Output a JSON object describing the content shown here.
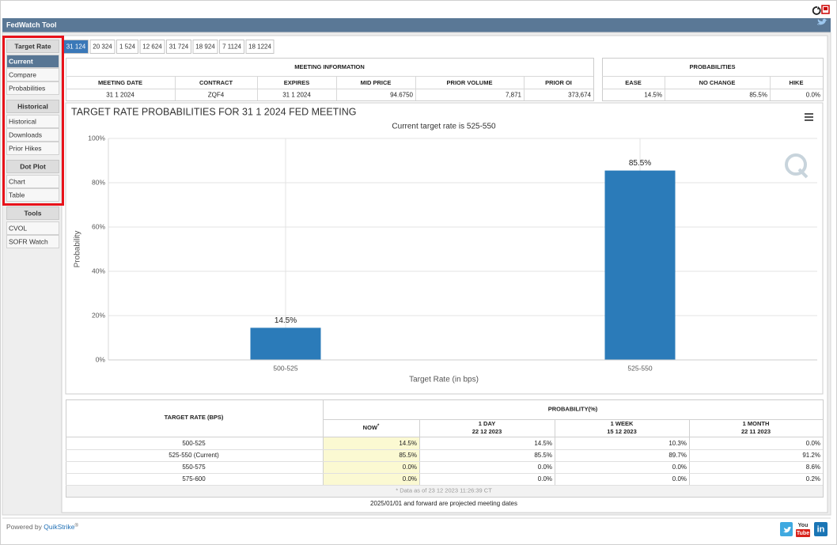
{
  "top_bar": {
    "title": "FedWatch Tool"
  },
  "sidebar": [
    {
      "heading": "Target Rate",
      "items": [
        "Current",
        "Compare",
        "Probabilities"
      ]
    },
    {
      "heading": "Historical",
      "items": [
        "Historical",
        "Downloads",
        "Prior Hikes"
      ]
    },
    {
      "heading": "Dot Plot",
      "items": [
        "Chart",
        "Table"
      ]
    },
    {
      "heading": "Tools",
      "items": [
        "CVOL",
        "SOFR Watch"
      ]
    }
  ],
  "tabs": [
    "31 124",
    "20 324",
    "1 524",
    "12 624",
    "31 724",
    "18 924",
    "7 1124",
    "18 1224"
  ],
  "meeting_information": {
    "title": "MEETING INFORMATION",
    "columns": [
      "MEETING DATE",
      "CONTRACT",
      "EXPIRES",
      "MID PRICE",
      "PRIOR VOLUME",
      "PRIOR OI"
    ],
    "row": [
      "31 1 2024",
      "ZQF4",
      "31 1 2024",
      "94.6750",
      "7,871",
      "373,674"
    ]
  },
  "probabilities": {
    "title": "PROBABILITIES",
    "columns": [
      "EASE",
      "NO CHANGE",
      "HIKE"
    ],
    "row": [
      "14.5%",
      "85.5%",
      "0.0%"
    ]
  },
  "chart_data": {
    "type": "bar",
    "title": "TARGET RATE PROBABILITIES FOR 31 1 2024 FED MEETING",
    "subtitle": "Current target rate is 525-550",
    "x_label": "Target Rate (in bps)",
    "y_label": "Probability",
    "categories": [
      "500-525",
      "525-550"
    ],
    "values": [
      14.5,
      85.5
    ],
    "value_labels": [
      "14.5%",
      "85.5%"
    ],
    "color": "#2b7bb9",
    "ylim": [
      0,
      100
    ],
    "yticks": [
      {
        "value": 0,
        "label": "0%"
      },
      {
        "value": 20,
        "label": "20%"
      },
      {
        "value": 40,
        "label": "40%"
      },
      {
        "value": 60,
        "label": "60%"
      },
      {
        "value": 80,
        "label": "80%"
      },
      {
        "value": 100,
        "label": "100%"
      }
    ],
    "grid": true
  },
  "probability_table": {
    "row_header": "TARGET RATE (BPS)",
    "group_header": "PROBABILITY(%)",
    "columns": [
      {
        "label": "NOW",
        "marker": "*"
      },
      {
        "label": "1 DAY",
        "date": "22 12 2023"
      },
      {
        "label": "1 WEEK",
        "date": "15 12 2023"
      },
      {
        "label": "1 MONTH",
        "date": "22 11 2023"
      }
    ],
    "rows": [
      {
        "label": "500-525",
        "values": [
          "14.5%",
          "14.5%",
          "10.3%",
          "0.0%"
        ]
      },
      {
        "label": "525-550 (Current)",
        "values": [
          "85.5%",
          "85.5%",
          "89.7%",
          "91.2%"
        ]
      },
      {
        "label": "550-575",
        "values": [
          "0.0%",
          "0.0%",
          "0.0%",
          "8.6%"
        ]
      },
      {
        "label": "575-600",
        "values": [
          "0.0%",
          "0.0%",
          "0.0%",
          "0.2%"
        ]
      }
    ],
    "note": "* Data as of 23 12 2023 11:26:39 CT"
  },
  "projection_note": "2025/01/01 and forward are projected meeting dates",
  "footer": {
    "powered_by": "Powered by",
    "brand": "QuikStrike",
    "brand_mark": "®",
    "youtube": [
      "You",
      "Tube"
    ],
    "linkedin": "in"
  }
}
